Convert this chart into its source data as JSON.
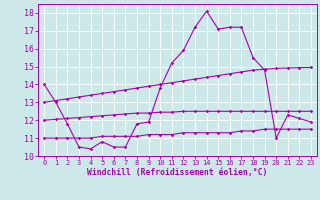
{
  "xlabel": "Windchill (Refroidissement éolien,°C)",
  "background_color": "#cce8e8",
  "line_color": "#aa00aa",
  "grid_color": "#ffffff",
  "xlim": [
    -0.5,
    23.5
  ],
  "ylim": [
    10,
    18.5
  ],
  "yticks": [
    10,
    11,
    12,
    13,
    14,
    15,
    16,
    17,
    18
  ],
  "xticks": [
    0,
    1,
    2,
    3,
    4,
    5,
    6,
    7,
    8,
    9,
    10,
    11,
    12,
    13,
    14,
    15,
    16,
    17,
    18,
    19,
    20,
    21,
    22,
    23
  ],
  "series": [
    {
      "x": [
        0,
        1,
        2,
        3,
        4,
        5,
        6,
        7,
        8,
        9,
        10,
        11,
        12,
        13,
        14,
        15,
        16,
        17,
        18,
        19,
        20,
        21,
        22,
        23
      ],
      "y": [
        14,
        13,
        11.8,
        10.5,
        10.4,
        10.8,
        10.5,
        10.5,
        11.8,
        11.9,
        13.8,
        15.2,
        15.9,
        17.2,
        18.1,
        17.1,
        17.2,
        17.2,
        15.5,
        14.8,
        11.0,
        12.3,
        12.1,
        11.9
      ]
    },
    {
      "x": [
        0,
        1,
        2,
        3,
        4,
        5,
        6,
        7,
        8,
        9,
        10,
        11,
        12,
        13,
        14,
        15,
        16,
        17,
        18,
        19,
        20,
        21,
        22,
        23
      ],
      "y": [
        11.0,
        11.0,
        11.0,
        11.0,
        11.0,
        11.1,
        11.1,
        11.1,
        11.1,
        11.2,
        11.2,
        11.2,
        11.3,
        11.3,
        11.3,
        11.3,
        11.3,
        11.4,
        11.4,
        11.5,
        11.5,
        11.5,
        11.5,
        11.5
      ]
    },
    {
      "x": [
        0,
        1,
        2,
        3,
        4,
        5,
        6,
        7,
        8,
        9,
        10,
        11,
        12,
        13,
        14,
        15,
        16,
        17,
        18,
        19,
        20,
        21,
        22,
        23
      ],
      "y": [
        12.0,
        12.05,
        12.1,
        12.15,
        12.2,
        12.25,
        12.3,
        12.35,
        12.4,
        12.4,
        12.45,
        12.45,
        12.5,
        12.5,
        12.5,
        12.5,
        12.5,
        12.5,
        12.5,
        12.5,
        12.5,
        12.5,
        12.5,
        12.5
      ]
    },
    {
      "x": [
        0,
        1,
        2,
        3,
        4,
        5,
        6,
        7,
        8,
        9,
        10,
        11,
        12,
        13,
        14,
        15,
        16,
        17,
        18,
        19,
        20,
        21,
        22,
        23
      ],
      "y": [
        13.0,
        13.1,
        13.2,
        13.3,
        13.4,
        13.5,
        13.6,
        13.7,
        13.8,
        13.9,
        14.0,
        14.1,
        14.2,
        14.3,
        14.4,
        14.5,
        14.6,
        14.7,
        14.8,
        14.85,
        14.9,
        14.92,
        14.94,
        14.95
      ]
    }
  ]
}
